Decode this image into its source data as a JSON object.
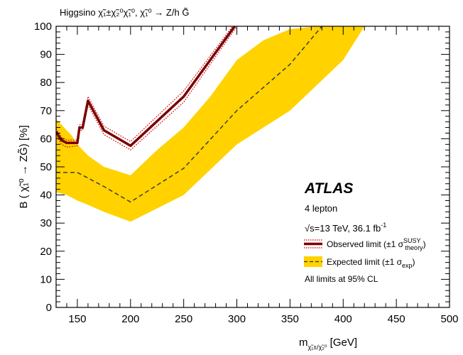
{
  "chart_data": {
    "type": "line",
    "title": "Higgsino χ̃₁±χ̃₂⁰χ̃₁⁰, χ̃₁⁰ → Z/h G̃",
    "title_parts": {
      "main": "Higgsino ",
      "process": "χ̃₁±χ̃₂⁰χ̃₁⁰, χ̃₁⁰ → Z/h G̃"
    },
    "xlabel": {
      "main": "m",
      "subscript": "χ̃₁±/χ̃₂⁰",
      "unit": " [GeV]"
    },
    "ylabel": "B ( χ̃₁⁰ → ZG̃) [%]",
    "xlim": [
      130,
      500
    ],
    "ylim": [
      0,
      100
    ],
    "xticks": [
      "150",
      "200",
      "250",
      "300",
      "350",
      "400",
      "450",
      "500"
    ],
    "xtick_values": [
      150,
      200,
      250,
      300,
      350,
      400,
      450,
      500
    ],
    "yticks": [
      "0",
      "10",
      "20",
      "30",
      "40",
      "50",
      "60",
      "70",
      "80",
      "90",
      "100"
    ],
    "ytick_values": [
      0,
      10,
      20,
      30,
      40,
      50,
      60,
      70,
      80,
      90,
      100
    ],
    "series": [
      {
        "name": "Observed limit (±1 σ theory SUSY)",
        "style": "solid",
        "color": "#7a0000",
        "x": [
          130,
          135,
          140,
          150,
          152,
          155,
          160,
          175,
          200,
          250,
          298
        ],
        "y": [
          62.5,
          59.5,
          58.5,
          58.5,
          64,
          64,
          73.5,
          63,
          57.5,
          75,
          100
        ]
      },
      {
        "name": "Observed +1σ theory",
        "style": "dotted",
        "color": "#cc0000",
        "x": [
          130,
          135,
          140,
          150,
          152,
          155,
          160,
          175,
          200,
          250,
          296
        ],
        "y": [
          63.5,
          60.5,
          59.5,
          59.5,
          65,
          65,
          75,
          64.5,
          59,
          77,
          100
        ]
      },
      {
        "name": "Observed -1σ theory",
        "style": "dotted",
        "color": "#cc0000",
        "x": [
          130,
          135,
          140,
          150,
          152,
          155,
          160,
          175,
          200,
          250,
          300
        ],
        "y": [
          61.5,
          58,
          57,
          57.5,
          63,
          63,
          72,
          61.5,
          56,
          73,
          100
        ]
      },
      {
        "name": "Expected limit (±1 σ exp)",
        "style": "dashed",
        "color": "#333333",
        "x": [
          130,
          140,
          150,
          175,
          200,
          250,
          300,
          350,
          380
        ],
        "y": [
          48,
          48,
          48,
          43,
          37.5,
          49.5,
          70,
          86.5,
          100
        ]
      }
    ],
    "band": {
      "name": "±1 σ exp",
      "color": "#ffd200",
      "x_upper": [
        130,
        145,
        150,
        160,
        175,
        200,
        225,
        250,
        275,
        300,
        325,
        350,
        375,
        405
      ],
      "y_upper": [
        67,
        61,
        58,
        54,
        50,
        47,
        56,
        64,
        75,
        88,
        95,
        99,
        100,
        100
      ],
      "x_lower": [
        130,
        140,
        150,
        160,
        175,
        200,
        250,
        300,
        350,
        400,
        420
      ],
      "y_lower": [
        41,
        40,
        38,
        36.5,
        34,
        30.5,
        40,
        58,
        70,
        88,
        100
      ]
    },
    "legend": {
      "placement": "right",
      "observed": {
        "main": "Observed limit (±1 σ",
        "sup": "SUSY",
        "sub": "theory",
        "end": ")"
      },
      "expected": {
        "main": "Expected limit (±1 σ",
        "sub": "exp",
        "end": ")"
      }
    },
    "annotations": {
      "atlas": "ATLAS",
      "channel": "4 lepton",
      "energy_sqrt": "√s",
      "energy_text": "=13 TeV, 36.1 fb",
      "energy_sup": "-1",
      "note": "All limits at 95% CL"
    },
    "grid": false
  }
}
